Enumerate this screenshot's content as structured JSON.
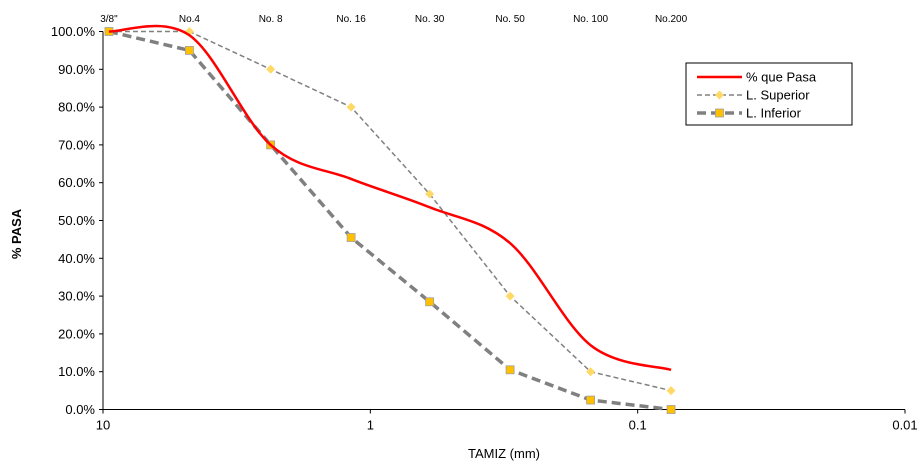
{
  "chart_data": {
    "type": "line",
    "x_scale": "log-reversed",
    "xlim": [
      10,
      0.01
    ],
    "ylim": [
      0,
      100
    ],
    "y_format": "percent",
    "xlabel": "TAMIZ (mm)",
    "ylabel": "% PASA",
    "x_ticks": [
      {
        "value": 10,
        "label": "10"
      },
      {
        "value": 1,
        "label": "1"
      },
      {
        "value": 0.1,
        "label": "0.1"
      },
      {
        "value": 0.01,
        "label": "0.01"
      }
    ],
    "y_ticks": [
      {
        "value": 0,
        "label": "0.0%"
      },
      {
        "value": 10,
        "label": "10.0%"
      },
      {
        "value": 20,
        "label": "20.0%"
      },
      {
        "value": 30,
        "label": "30.0%"
      },
      {
        "value": 40,
        "label": "40.0%"
      },
      {
        "value": 50,
        "label": "50.0%"
      },
      {
        "value": 60,
        "label": "60.0%"
      },
      {
        "value": 70,
        "label": "70.0%"
      },
      {
        "value": 80,
        "label": "80.0%"
      },
      {
        "value": 90,
        "label": "90.0%"
      },
      {
        "value": 100,
        "label": "100.0%"
      }
    ],
    "sieves": [
      {
        "label": "3/8\"",
        "x": 9.5
      },
      {
        "label": "No.4",
        "x": 4.75
      },
      {
        "label": "No. 8",
        "x": 2.36
      },
      {
        "label": "No. 16",
        "x": 1.18
      },
      {
        "label": "No. 30",
        "x": 0.6
      },
      {
        "label": "No. 50",
        "x": 0.3
      },
      {
        "label": "No. 100",
        "x": 0.15
      },
      {
        "label": "No.200",
        "x": 0.075
      }
    ],
    "series": [
      {
        "name": "% que Pasa",
        "color": "#ff0000",
        "style": "solid",
        "marker": "none",
        "x": [
          9.5,
          4.75,
          2.36,
          1.18,
          0.6,
          0.3,
          0.15,
          0.075
        ],
        "y": [
          100,
          99,
          70,
          61,
          53.5,
          44,
          17,
          10.5
        ]
      },
      {
        "name": "L. Superior",
        "color": "#808080",
        "marker_color": "#ffd966",
        "style": "dashed",
        "marker": "diamond",
        "x": [
          9.5,
          4.75,
          2.36,
          1.18,
          0.6,
          0.3,
          0.15,
          0.075
        ],
        "y": [
          100,
          100,
          90,
          80,
          57,
          30,
          10,
          5
        ]
      },
      {
        "name": "L. Inferior",
        "color": "#808080",
        "marker_color": "#ffc000",
        "style": "thick-dashed",
        "marker": "square",
        "x": [
          9.5,
          4.75,
          2.36,
          1.18,
          0.6,
          0.3,
          0.15,
          0.075
        ],
        "y": [
          100,
          95,
          70,
          45.5,
          28.5,
          10.5,
          2.5,
          0
        ]
      }
    ],
    "legend_position": "top-right",
    "grid": false
  }
}
